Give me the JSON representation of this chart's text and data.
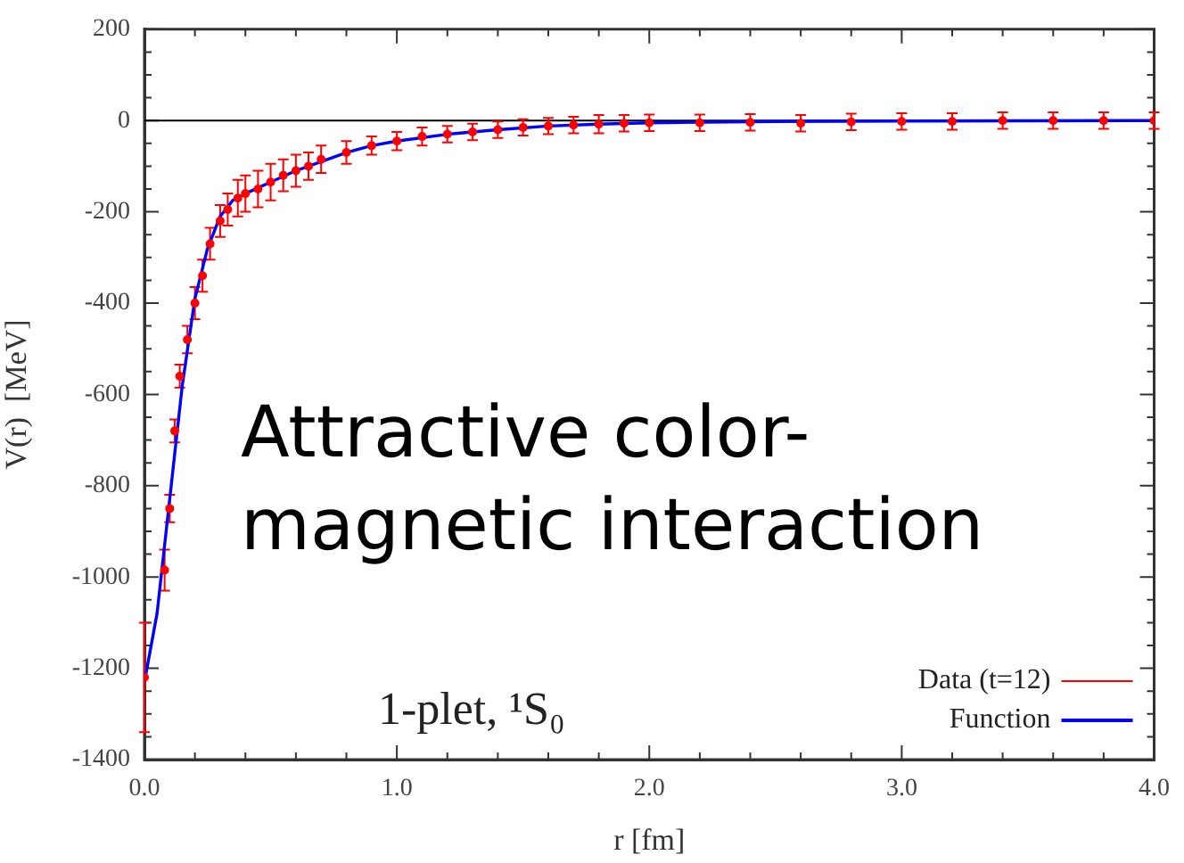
{
  "chart_data": {
    "type": "scatter",
    "xlabel": "r [fm]",
    "ylabel": "V(r)  [MeV]",
    "xlim": [
      0,
      4
    ],
    "xticks": [
      {
        "value": 0,
        "label": "0.0"
      },
      {
        "value": 1,
        "label": "1.0"
      },
      {
        "value": 2,
        "label": "2.0"
      },
      {
        "value": 3,
        "label": "3.0"
      },
      {
        "value": 4,
        "label": "4.0"
      }
    ],
    "ylim": [
      -1400,
      200
    ],
    "yticks": [
      -1400,
      -1200,
      -1000,
      -800,
      -600,
      -400,
      -200,
      0,
      200
    ],
    "grid": false,
    "legend": "bottom right",
    "ref_lines": [
      {
        "axis": "y",
        "value": 0,
        "color": "#000000"
      }
    ],
    "annotations": [
      "Attractive color-\nmagnetic interaction",
      "1-plet, ¹S₀"
    ],
    "series": [
      {
        "name": "Data (t=12)",
        "color": "#ff0000",
        "x": [
          0,
          0.08,
          0.1,
          0.12,
          0.14,
          0.17,
          0.2,
          0.23,
          0.26,
          0.3,
          0.33,
          0.37,
          0.4,
          0.45,
          0.5,
          0.55,
          0.6,
          0.65,
          0.7,
          0.8,
          0.9,
          1.0,
          1.1,
          1.2,
          1.3,
          1.4,
          1.5,
          1.6,
          1.7,
          1.8,
          1.9,
          2.0,
          2.2,
          2.4,
          2.6,
          2.8,
          3.0,
          3.2,
          3.4,
          3.6,
          3.8,
          4.0
        ],
        "values": [
          -1220,
          -985,
          -850,
          -680,
          -560,
          -480,
          -400,
          -340,
          -270,
          -220,
          -195,
          -170,
          -160,
          -150,
          -135,
          -120,
          -110,
          -100,
          -85,
          -70,
          -55,
          -45,
          -35,
          -30,
          -25,
          -20,
          -15,
          -12,
          -10,
          -8,
          -6,
          -5,
          -5,
          -4,
          -6,
          -3,
          -2,
          -2,
          0,
          0,
          0,
          0
        ],
        "errors": [
          120,
          45,
          30,
          25,
          25,
          30,
          35,
          35,
          35,
          35,
          35,
          40,
          40,
          40,
          40,
          35,
          35,
          30,
          30,
          25,
          20,
          20,
          20,
          18,
          18,
          18,
          18,
          18,
          18,
          20,
          18,
          18,
          18,
          18,
          18,
          18,
          18,
          18,
          18,
          18,
          18,
          18
        ]
      },
      {
        "name": "Function",
        "type": "line",
        "color": "#0000ff",
        "x": [
          0,
          0.05,
          0.1,
          0.15,
          0.2,
          0.25,
          0.3,
          0.35,
          0.4,
          0.5,
          0.6,
          0.7,
          0.8,
          0.9,
          1.0,
          1.2,
          1.4,
          1.6,
          1.8,
          2.0,
          2.5,
          3.0,
          4.0
        ],
        "values": [
          -1230,
          -1080,
          -830,
          -580,
          -390,
          -280,
          -210,
          -175,
          -160,
          -135,
          -110,
          -90,
          -70,
          -55,
          -45,
          -30,
          -20,
          -12,
          -8,
          -5,
          -2,
          -1,
          0
        ]
      }
    ]
  }
}
